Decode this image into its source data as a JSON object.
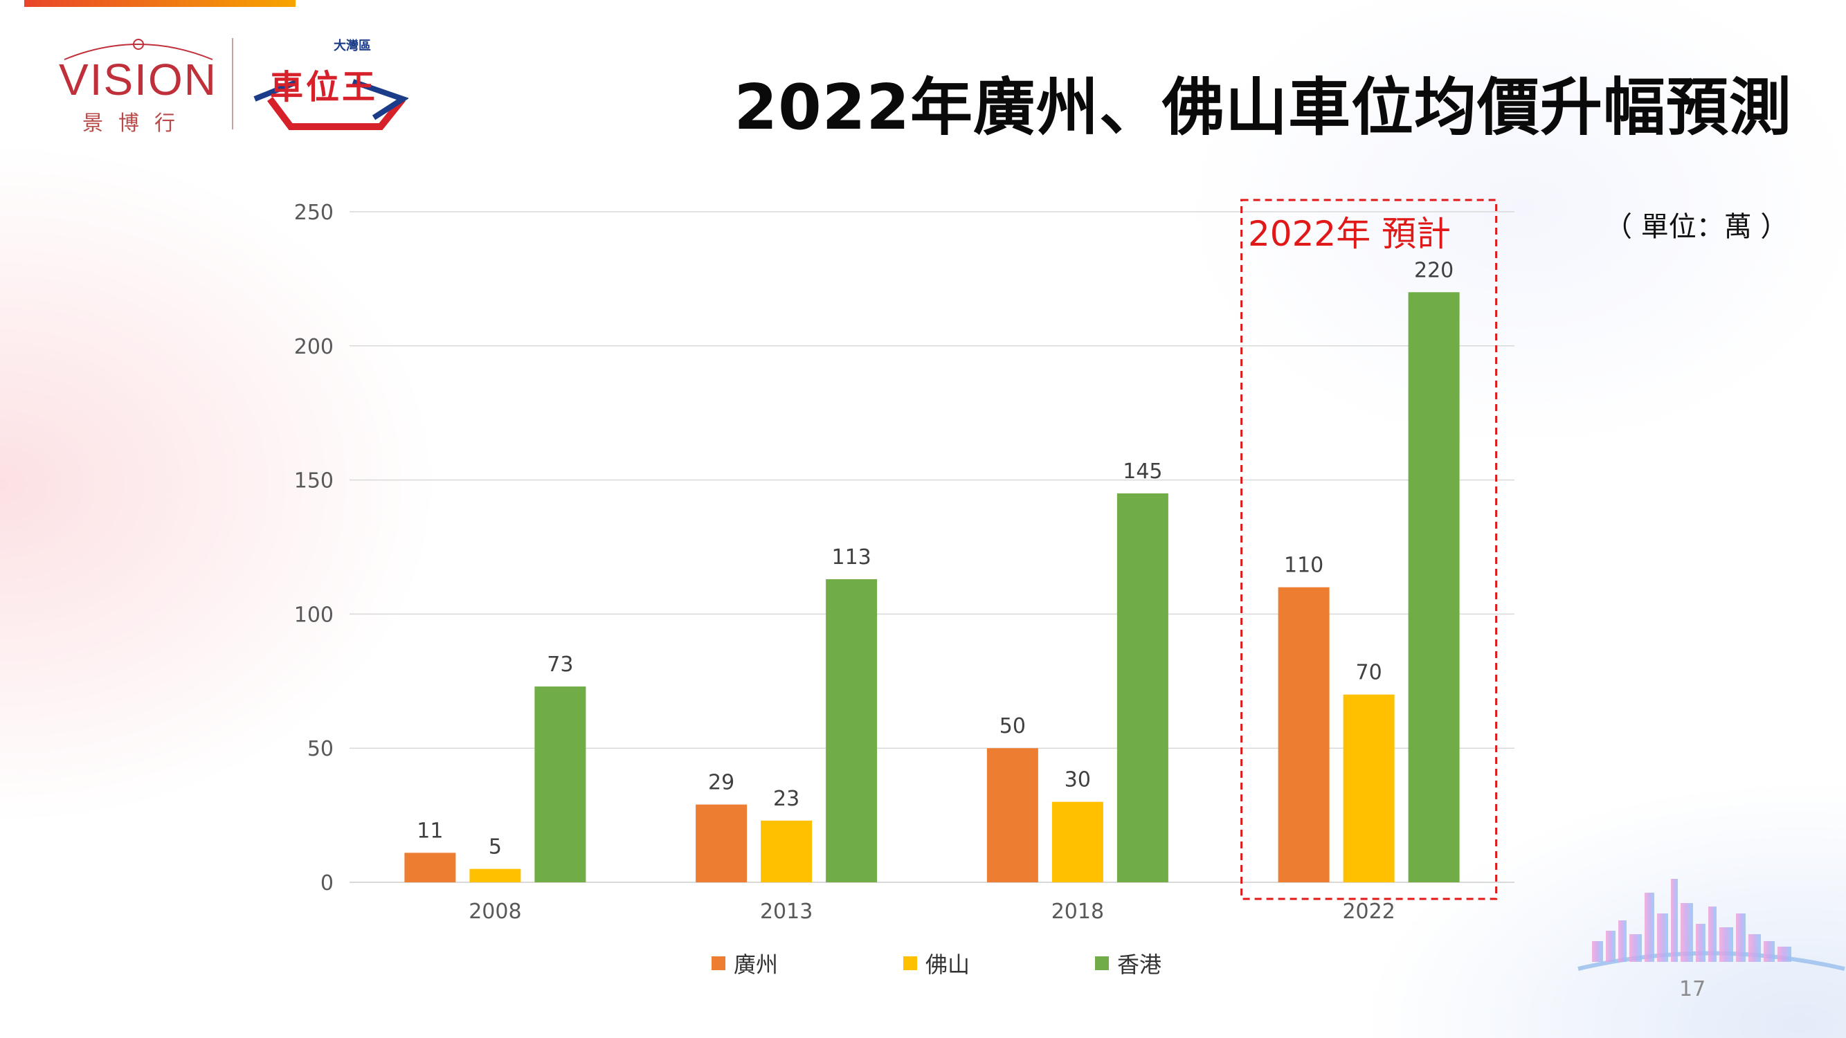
{
  "page": {
    "title": "2022年廣州、佛山車位均價升幅預測",
    "unit": "（ 單位：萬 ）",
    "forecast_label": "2022年  預計",
    "page_number": "17"
  },
  "logos": {
    "vision_word": "VISION",
    "vision_sub": "景博行",
    "cwk_region": "大灣區",
    "cwk_name": "車位王"
  },
  "colors": {
    "guangzhou": "#ED7D31",
    "foshan": "#FFC000",
    "hongkong": "#70AD47",
    "forecast_box": "#E01818",
    "grid": "#D9D9D9",
    "axis_text": "#595959"
  },
  "chart_data": {
    "type": "bar",
    "categories": [
      "2008",
      "2013",
      "2018",
      "2022"
    ],
    "series": [
      {
        "name": "廣州",
        "values": [
          11,
          29,
          50,
          110
        ]
      },
      {
        "name": "佛山",
        "values": [
          5,
          23,
          30,
          70
        ]
      },
      {
        "name": "香港",
        "values": [
          73,
          113,
          145,
          220
        ]
      }
    ],
    "yticks": [
      "0",
      "50",
      "100",
      "150",
      "200",
      "250"
    ],
    "ylim": [
      0,
      250
    ],
    "grid": true,
    "legend_position": "bottom",
    "highlight_category": "2022"
  }
}
